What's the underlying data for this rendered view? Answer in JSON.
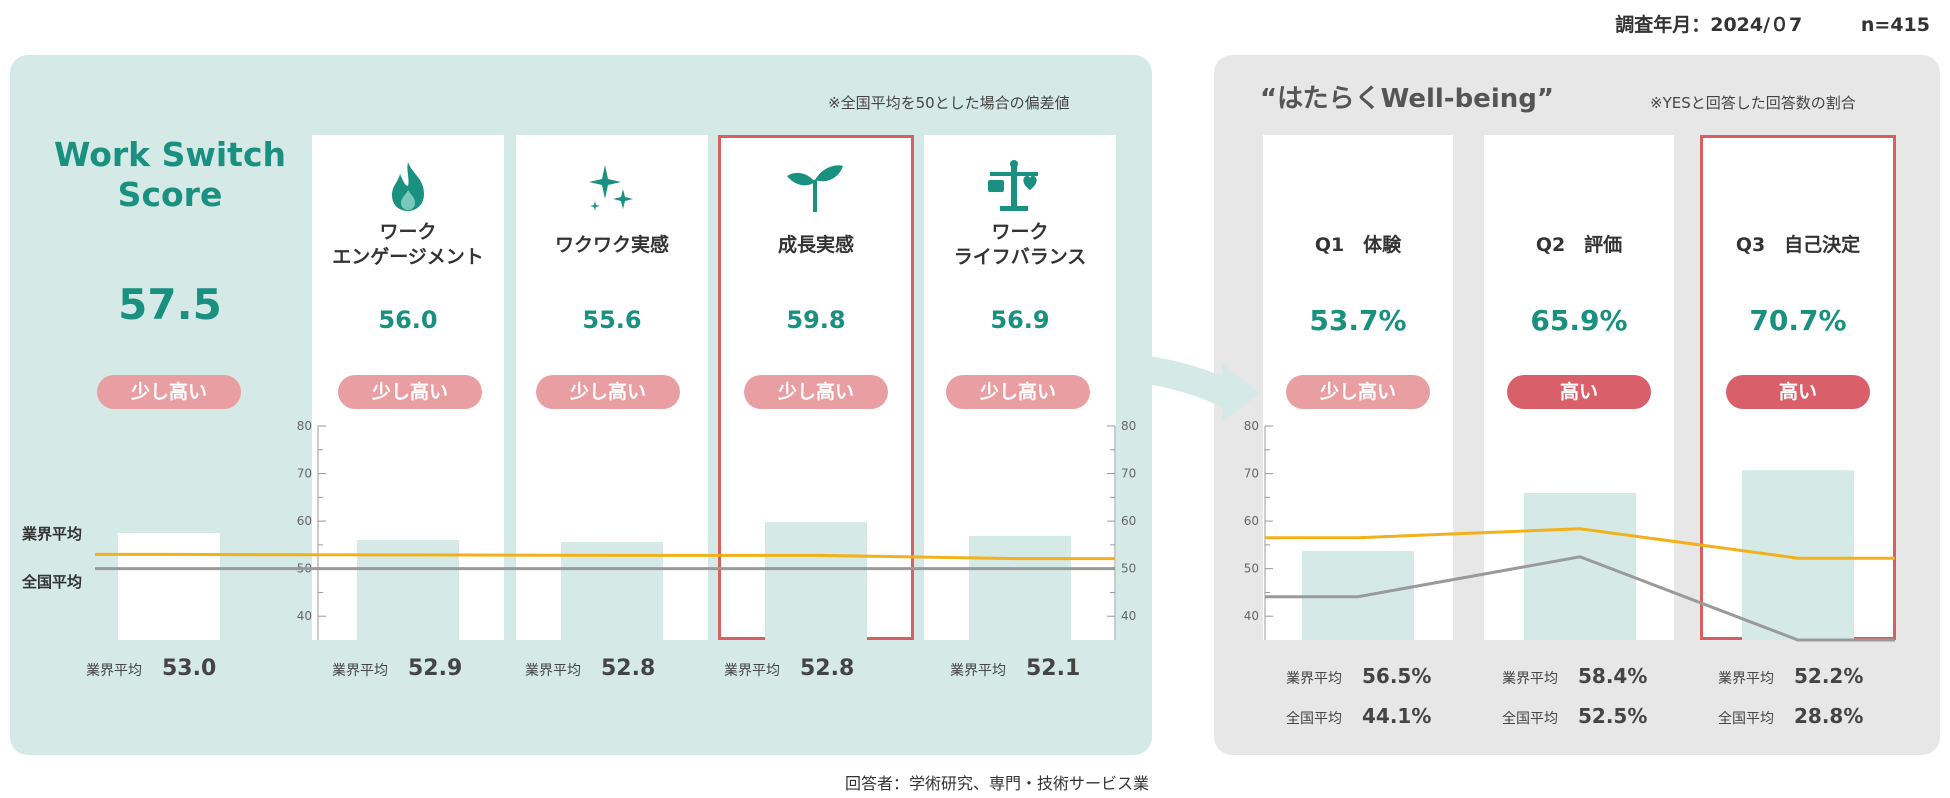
{
  "header": {
    "survey_date": "調査年月：2024/０7",
    "n": "n=415"
  },
  "left": {
    "note": "※全国平均を50とした場合の偏差値",
    "title": "Work Switch Score",
    "score": "57.5",
    "badge": "少し高い",
    "industry_avg_label": "業界平均",
    "industry_avg_value": "53.0",
    "line_label_industry": "業界平均",
    "line_label_national": "全国平均",
    "columns": [
      {
        "label": "ワーク\nエンゲージメント",
        "value": "56.0",
        "badge": "少し高い",
        "avg_label": "業界平均",
        "avg_value": "52.9",
        "icon": "flame-icon"
      },
      {
        "label": "ワクワク実感",
        "value": "55.6",
        "badge": "少し高い",
        "avg_label": "業界平均",
        "avg_value": "52.8",
        "icon": "sparkle-icon"
      },
      {
        "label": "成長実感",
        "value": "59.8",
        "badge": "少し高い",
        "avg_label": "業界平均",
        "avg_value": "52.8",
        "icon": "sprout-icon"
      },
      {
        "label": "ワーク\nライフバランス",
        "value": "56.9",
        "badge": "少し高い",
        "avg_label": "業界平均",
        "avg_value": "52.1",
        "icon": "balance-icon"
      }
    ]
  },
  "right": {
    "title": "“はたらくWell-being”",
    "note": "※YESと回答した回答数の割合",
    "columns": [
      {
        "label": "Q1　体験",
        "value": "53.7%",
        "badge": "少し高い",
        "industry_label": "業界平均",
        "industry_value": "56.5%",
        "national_label": "全国平均",
        "national_value": "44.1%"
      },
      {
        "label": "Q2　評価",
        "value": "65.9%",
        "badge": "高い",
        "industry_label": "業界平均",
        "industry_value": "58.4%",
        "national_label": "全国平均",
        "national_value": "52.5%"
      },
      {
        "label": "Q3　自己決定",
        "value": "70.7%",
        "badge": "高い",
        "industry_label": "業界平均",
        "industry_value": "52.2%",
        "national_label": "全国平均",
        "national_value": "28.8%"
      }
    ]
  },
  "footnote": "回答者：学術研究、専門・技術サービス業",
  "colors": {
    "teal": "#1a9080",
    "bar": "#d5e9e6",
    "industry_line": "#f2b11a",
    "national_line": "#9a9a9a",
    "highlight": "#d5605f"
  },
  "chart_data": [
    {
      "type": "bar",
      "categories": [
        "Work Switch Score",
        "ワークエンゲージメント",
        "ワクワク実感",
        "成長実感",
        "ワークライフバランス"
      ],
      "series": [
        {
          "values": [
            57.5,
            56.0,
            55.6,
            59.8,
            56.9
          ]
        },
        {
          "name": "業界平均",
          "type": "line",
          "values": [
            53.0,
            52.9,
            52.8,
            52.8,
            52.1
          ]
        },
        {
          "name": "全国平均",
          "type": "line",
          "values": [
            50,
            50,
            50,
            50,
            50
          ]
        }
      ],
      "ylim": [
        35,
        80
      ],
      "yticks": [
        40,
        50,
        60,
        70,
        80
      ]
    },
    {
      "type": "bar",
      "categories": [
        "Q1 体験",
        "Q2 評価",
        "Q3 自己決定"
      ],
      "series": [
        {
          "values": [
            53.7,
            65.9,
            70.7
          ]
        },
        {
          "name": "業界平均",
          "type": "line",
          "values": [
            56.5,
            58.4,
            52.2
          ]
        },
        {
          "name": "全国平均",
          "type": "line",
          "values": [
            44.1,
            52.5,
            28.8
          ]
        }
      ],
      "ylim": [
        35,
        80
      ],
      "yticks": [
        40,
        50,
        60,
        70,
        80
      ]
    }
  ]
}
